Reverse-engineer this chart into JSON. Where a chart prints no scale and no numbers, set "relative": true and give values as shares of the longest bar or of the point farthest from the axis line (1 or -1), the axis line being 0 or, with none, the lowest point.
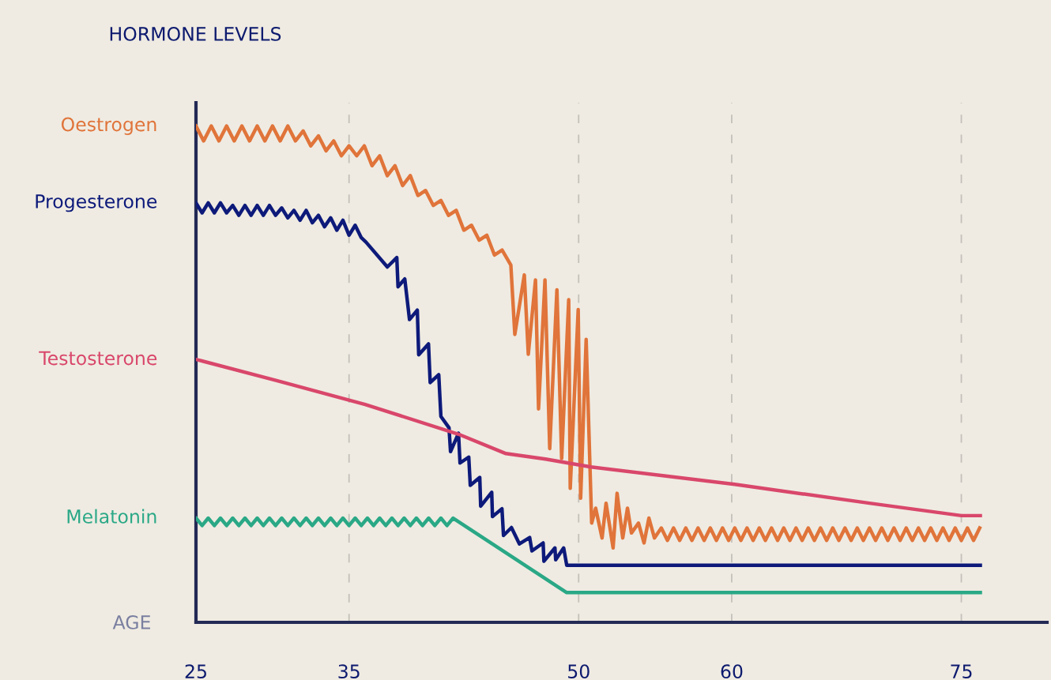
{
  "chart_data": {
    "type": "line",
    "relative": true,
    "ylabel": "HORMONE LEVELS",
    "xlabel": "AGE",
    "xlim": [
      25,
      80.6
    ],
    "xticks": [
      25,
      35,
      50,
      60,
      75
    ],
    "grid": "x",
    "line_style": "solid",
    "marker": "none",
    "series": [
      {
        "name": "Oestrogen",
        "color": "#e0743a",
        "x": [
          25.0,
          25.5,
          26.0,
          26.5,
          27.0,
          27.5,
          28.0,
          28.5,
          29.0,
          29.5,
          30.0,
          30.5,
          31.0,
          31.5,
          32.0,
          32.5,
          33.0,
          33.5,
          34.0,
          34.5,
          35.0,
          35.5,
          36.0,
          36.5,
          37.0,
          37.5,
          38.0,
          38.5,
          39.0,
          39.5,
          40.0,
          40.5,
          41.0,
          41.5,
          42.0,
          42.5,
          43.0,
          43.5,
          44.0,
          44.5,
          45.0,
          45.57,
          45.83,
          46.45,
          46.71,
          47.18,
          47.38,
          47.8,
          48.11,
          48.58,
          48.89,
          49.35,
          49.45,
          49.97,
          50.13,
          50.49,
          50.85,
          51.11,
          51.53,
          51.79,
          52.25,
          52.51,
          52.88,
          53.19,
          53.45,
          53.91,
          54.27,
          54.59,
          54.95,
          55.4,
          55.8,
          56.2,
          56.6,
          57.0,
          57.4,
          57.8,
          58.2,
          58.6,
          59.0,
          59.4,
          59.8,
          60.2,
          60.6,
          61.0,
          61.4,
          61.8,
          62.2,
          62.6,
          63.0,
          63.4,
          63.8,
          64.2,
          64.6,
          65.0,
          65.4,
          65.8,
          66.2,
          66.6,
          67.0,
          67.4,
          67.8,
          68.2,
          68.6,
          69.0,
          69.4,
          69.8,
          70.2,
          70.6,
          71.0,
          71.4,
          71.8,
          72.2,
          72.6,
          73.0,
          73.4,
          73.8,
          74.2,
          74.6,
          75.0,
          75.4,
          75.8,
          76.2
        ],
        "values": [
          1.0,
          0.97,
          1.0,
          0.97,
          1.0,
          0.97,
          1.0,
          0.97,
          1.0,
          0.97,
          1.0,
          0.97,
          1.0,
          0.97,
          0.99,
          0.96,
          0.98,
          0.95,
          0.97,
          0.94,
          0.96,
          0.94,
          0.96,
          0.92,
          0.94,
          0.9,
          0.92,
          0.88,
          0.9,
          0.86,
          0.87,
          0.84,
          0.85,
          0.82,
          0.83,
          0.79,
          0.8,
          0.77,
          0.78,
          0.74,
          0.75,
          0.72,
          0.58,
          0.7,
          0.54,
          0.69,
          0.43,
          0.69,
          0.35,
          0.67,
          0.33,
          0.65,
          0.27,
          0.63,
          0.25,
          0.57,
          0.2,
          0.23,
          0.17,
          0.24,
          0.15,
          0.26,
          0.17,
          0.23,
          0.18,
          0.2,
          0.16,
          0.21,
          0.17,
          0.19,
          0.165,
          0.19,
          0.165,
          0.19,
          0.165,
          0.19,
          0.165,
          0.19,
          0.165,
          0.19,
          0.165,
          0.19,
          0.165,
          0.19,
          0.165,
          0.19,
          0.165,
          0.19,
          0.165,
          0.19,
          0.165,
          0.19,
          0.165,
          0.19,
          0.165,
          0.19,
          0.165,
          0.19,
          0.165,
          0.19,
          0.165,
          0.19,
          0.165,
          0.19,
          0.165,
          0.19,
          0.165,
          0.19,
          0.165,
          0.19,
          0.165,
          0.19,
          0.165,
          0.19,
          0.165,
          0.19,
          0.165,
          0.19,
          0.165,
          0.19,
          0.165,
          0.19
        ]
      },
      {
        "name": "Progesterone",
        "color": "#0d1a7a",
        "x": [
          25.0,
          25.4,
          25.8,
          26.2,
          26.6,
          27.0,
          27.4,
          27.8,
          28.2,
          28.6,
          29.0,
          29.4,
          29.8,
          30.2,
          30.6,
          31.0,
          31.4,
          31.8,
          32.2,
          32.6,
          33.0,
          33.4,
          33.8,
          34.2,
          34.6,
          35.0,
          35.4,
          35.8,
          36.11,
          37.5,
          38.12,
          38.2,
          38.64,
          38.95,
          39.46,
          39.55,
          40.19,
          40.3,
          40.86,
          41.0,
          41.53,
          41.63,
          42.15,
          42.25,
          42.82,
          42.92,
          43.54,
          43.6,
          44.32,
          44.37,
          44.99,
          45.09,
          45.61,
          46.13,
          46.8,
          46.95,
          47.68,
          47.73,
          48.45,
          48.5,
          49.02,
          49.22,
          76.24
        ],
        "values": [
          0.845,
          0.825,
          0.845,
          0.825,
          0.845,
          0.825,
          0.84,
          0.82,
          0.84,
          0.82,
          0.84,
          0.82,
          0.84,
          0.82,
          0.835,
          0.815,
          0.83,
          0.81,
          0.83,
          0.805,
          0.82,
          0.797,
          0.815,
          0.79,
          0.81,
          0.78,
          0.8,
          0.775,
          0.766,
          0.716,
          0.735,
          0.676,
          0.692,
          0.61,
          0.629,
          0.539,
          0.561,
          0.483,
          0.499,
          0.415,
          0.392,
          0.344,
          0.381,
          0.321,
          0.333,
          0.276,
          0.292,
          0.234,
          0.262,
          0.213,
          0.229,
          0.175,
          0.191,
          0.158,
          0.171,
          0.144,
          0.16,
          0.123,
          0.15,
          0.126,
          0.15,
          0.115,
          0.115
        ]
      },
      {
        "name": "Testosterone",
        "color": "#d9476b",
        "x": [
          25.1,
          30.27,
          36.05,
          42.15,
          45.25,
          47.83,
          50.8,
          60.2,
          69.0,
          75.0,
          76.24
        ],
        "values": [
          0.529,
          0.487,
          0.439,
          0.379,
          0.34,
          0.329,
          0.313,
          0.278,
          0.24,
          0.215,
          0.215
        ]
      },
      {
        "name": "Melatonin",
        "color": "#2aa886",
        "x": [
          25.0,
          25.4,
          25.8,
          26.2,
          26.6,
          27.0,
          27.4,
          27.8,
          28.2,
          28.6,
          29.0,
          29.4,
          29.8,
          30.2,
          30.6,
          31.0,
          31.4,
          31.8,
          32.2,
          32.6,
          33.0,
          33.4,
          33.8,
          34.2,
          34.6,
          35.0,
          35.4,
          35.8,
          36.2,
          36.6,
          37.0,
          37.4,
          37.8,
          38.2,
          38.6,
          39.0,
          39.4,
          39.8,
          40.2,
          40.6,
          41.0,
          41.4,
          41.8,
          49.22,
          76.24
        ],
        "values": [
          0.21,
          0.195,
          0.21,
          0.195,
          0.21,
          0.195,
          0.21,
          0.195,
          0.21,
          0.195,
          0.21,
          0.195,
          0.21,
          0.195,
          0.21,
          0.195,
          0.21,
          0.195,
          0.21,
          0.195,
          0.21,
          0.195,
          0.21,
          0.195,
          0.21,
          0.195,
          0.21,
          0.195,
          0.21,
          0.195,
          0.21,
          0.195,
          0.21,
          0.195,
          0.21,
          0.195,
          0.21,
          0.195,
          0.21,
          0.195,
          0.21,
          0.195,
          0.21,
          0.06,
          0.06
        ]
      }
    ]
  }
}
